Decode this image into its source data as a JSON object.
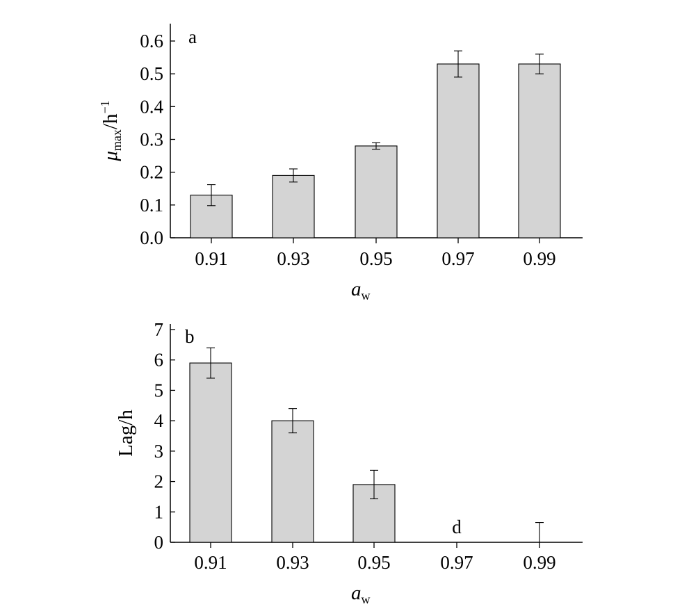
{
  "chart_data": [
    {
      "type": "bar",
      "panel_label": "a",
      "categories": [
        "0.91",
        "0.93",
        "0.95",
        "0.97",
        "0.99"
      ],
      "values": [
        0.13,
        0.19,
        0.28,
        0.53,
        0.53
      ],
      "errors": [
        0.032,
        0.02,
        0.01,
        0.04,
        0.03
      ],
      "ylabel": "μmax/h−1",
      "ylabel_parts": {
        "main": "μ",
        "sub": "max",
        "unit": "/h",
        "sup": "−1"
      },
      "xlabel": "aw",
      "xlabel_parts": {
        "main": "a",
        "sub": "w"
      },
      "ylim": [
        0,
        0.6
      ],
      "yticks": [
        "0.0",
        "0.1",
        "0.2",
        "0.3",
        "0.4",
        "0.5",
        "0.6"
      ],
      "bar_color": "#d4d4d4",
      "annotations": []
    },
    {
      "type": "bar",
      "panel_label": "b",
      "categories": [
        "0.91",
        "0.93",
        "0.95",
        "0.97",
        "0.99"
      ],
      "values": [
        5.9,
        4.0,
        1.9,
        0,
        0
      ],
      "errors": [
        0.5,
        0.4,
        0.47,
        0,
        0.65
      ],
      "ylabel": "Lag/h",
      "xlabel": "aw",
      "xlabel_parts": {
        "main": "a",
        "sub": "w"
      },
      "ylim": [
        0,
        7
      ],
      "yticks": [
        "0",
        "1",
        "2",
        "3",
        "4",
        "5",
        "6",
        "7"
      ],
      "bar_color": "#d4d4d4",
      "annotations": [
        {
          "category": "0.97",
          "text": "d"
        }
      ]
    }
  ]
}
